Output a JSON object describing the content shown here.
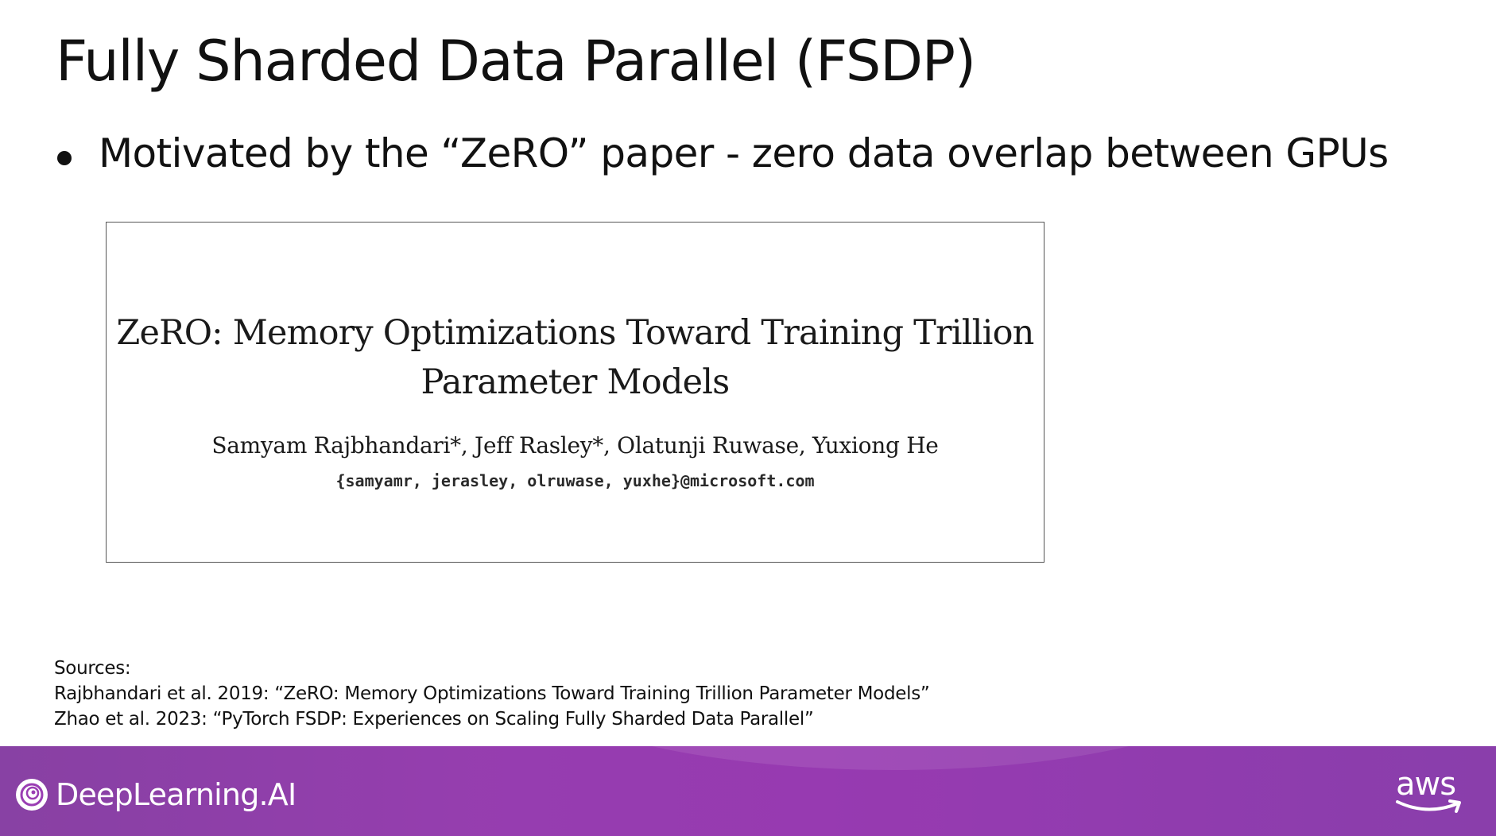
{
  "slide": {
    "title": "Fully Sharded Data Parallel (FSDP)",
    "bullet": "Motivated by the “ZeRO” paper - zero data overlap between GPUs"
  },
  "paper": {
    "title_line1": "ZeRO: Memory Optimizations Toward Training Trillion",
    "title_line2": "Parameter Models",
    "authors": "Samyam Rajbhandari*, Jeff Rasley*, Olatunji Ruwase, Yuxiong He",
    "emails": "{samyamr, jerasley, olruwase, yuxhe}@microsoft.com"
  },
  "sources": {
    "heading": "Sources:",
    "items": [
      "Rajbhandari et al. 2019: “ZeRO: Memory Optimizations Toward Training Trillion Parameter Models”",
      "Zhao et al. 2023: “PyTorch FSDP: Experiences on Scaling Fully Sharded Data Parallel”"
    ]
  },
  "footer": {
    "brand": "DeepLearning.AI",
    "partner": "aws",
    "brand_icon": "deeplearning-ai-logo-icon",
    "partner_icon": "aws-logo-icon",
    "colors": {
      "band": "#9a3eb3",
      "text": "#ffffff"
    }
  }
}
